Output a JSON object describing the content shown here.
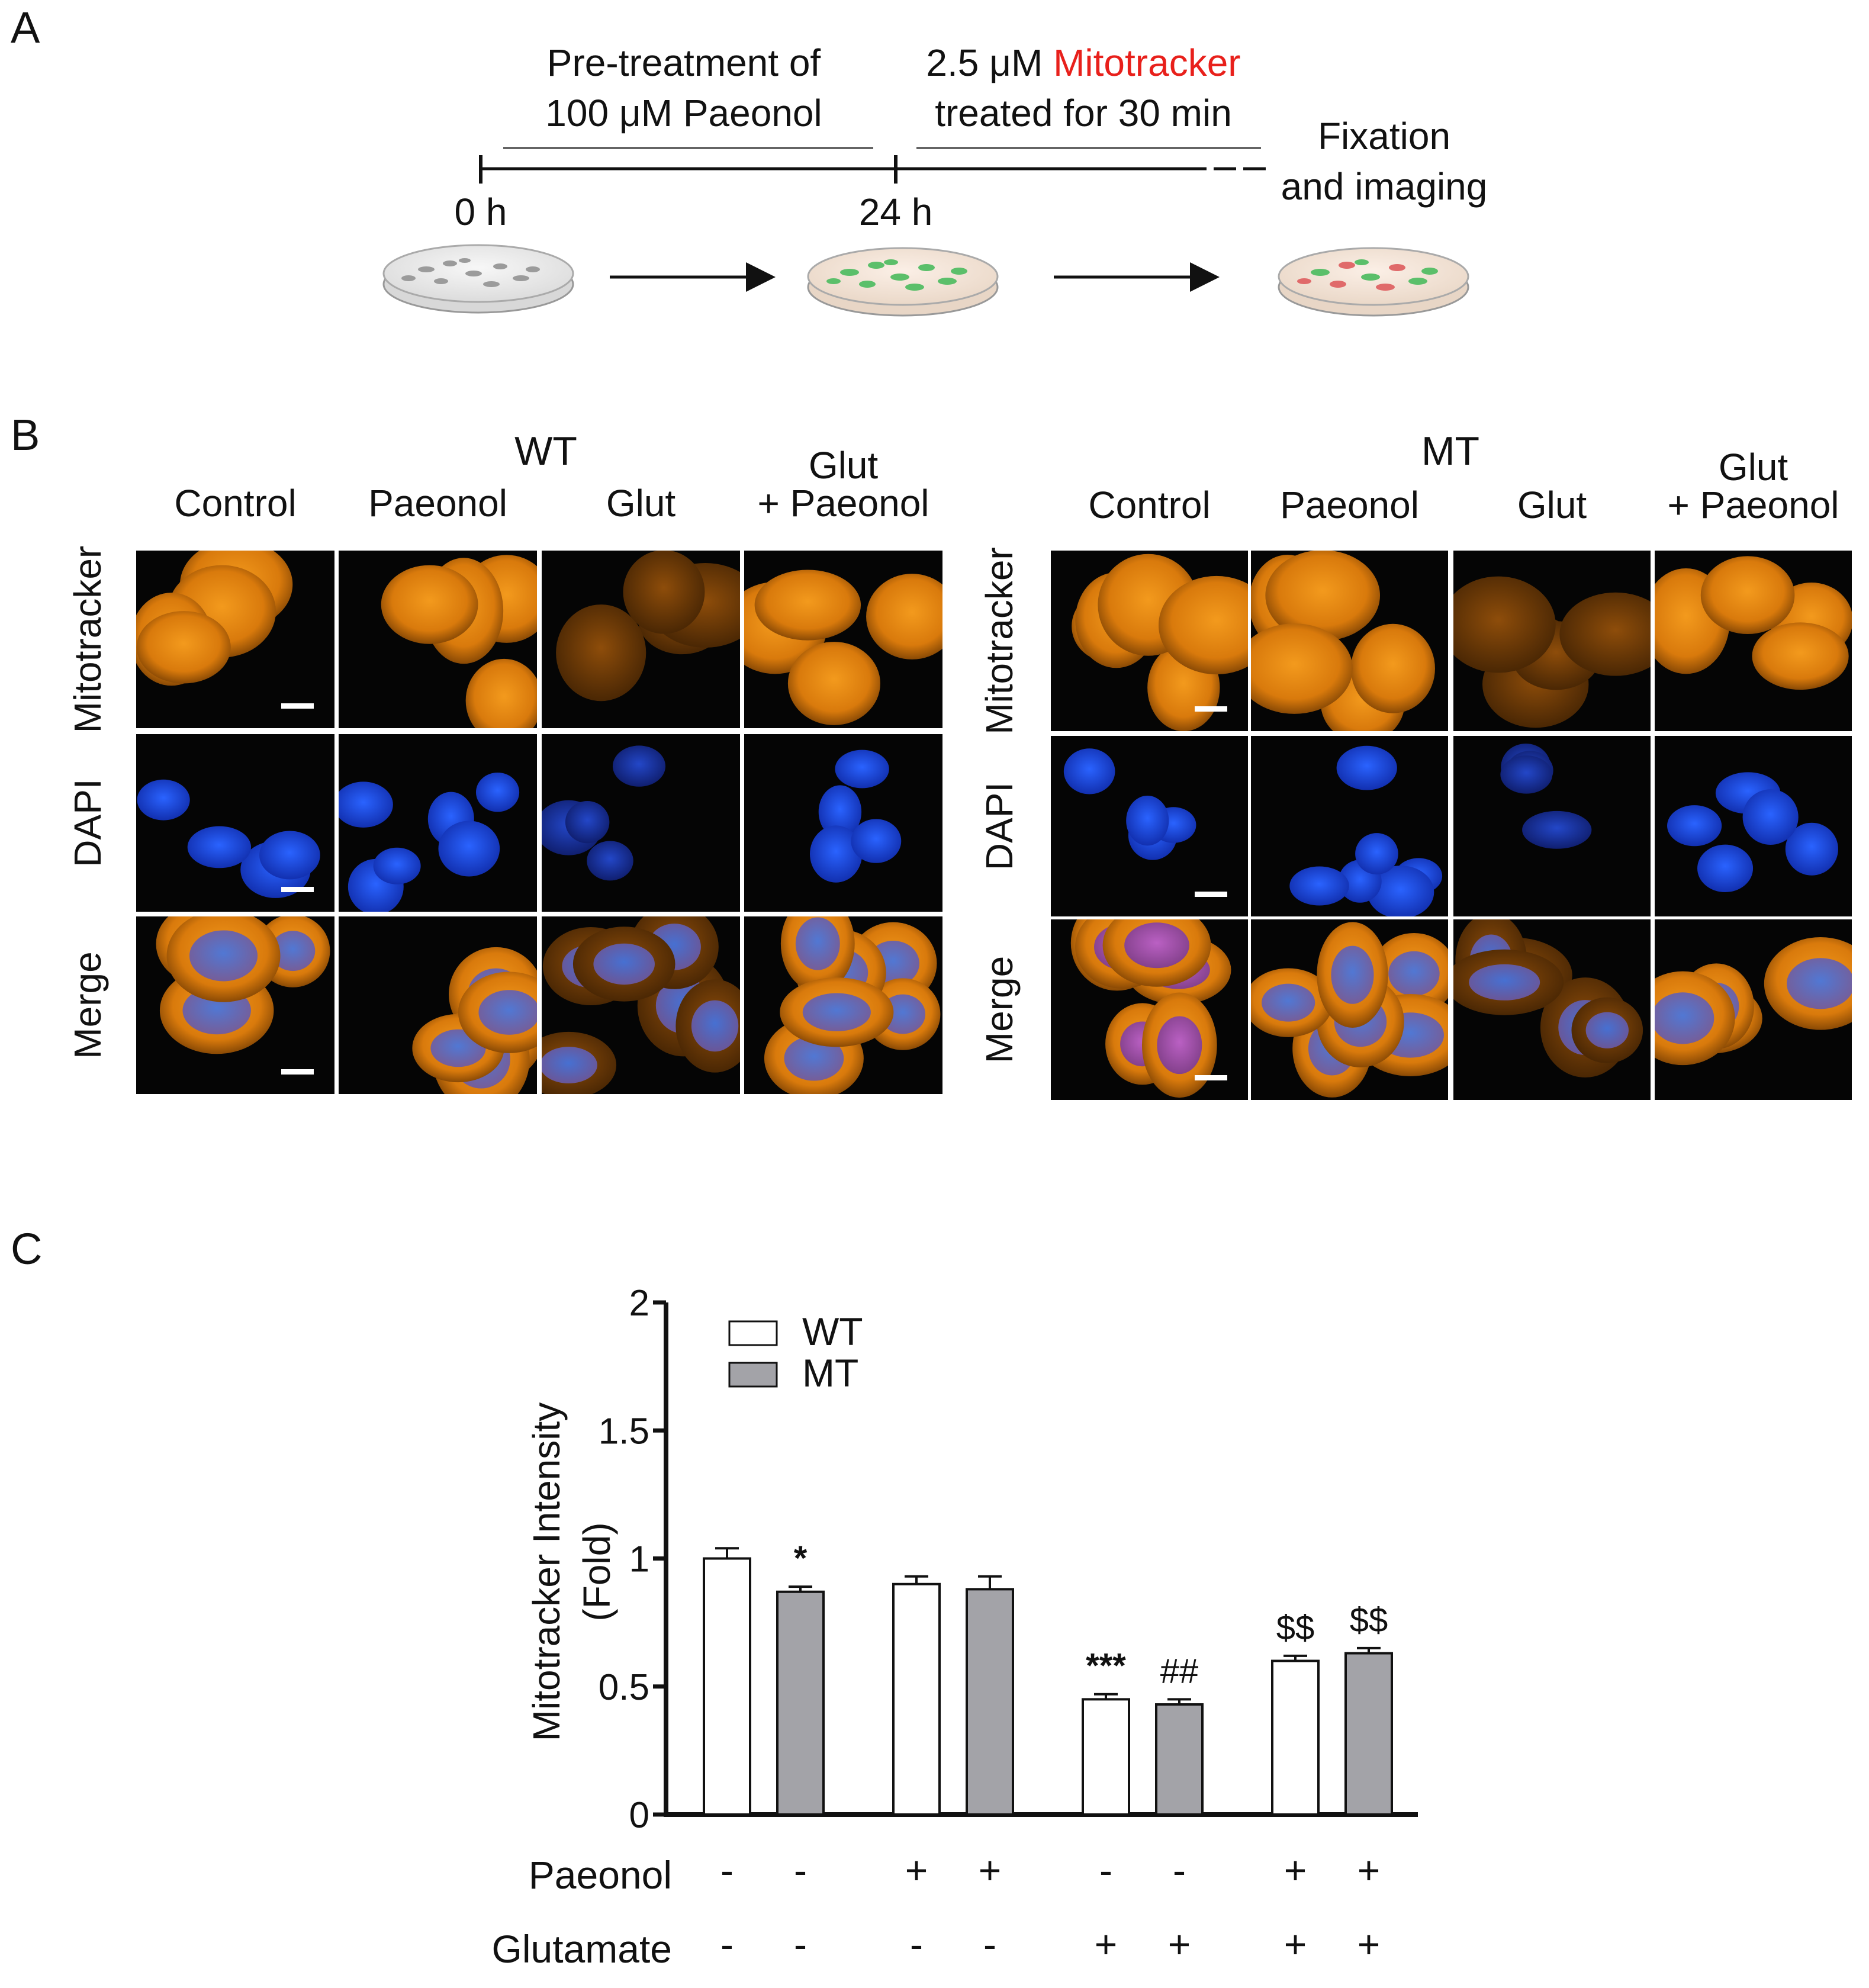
{
  "panel_labels": {
    "a": "A",
    "b": "B",
    "c": "C"
  },
  "timeline": {
    "pretreat_line1": "Pre-treatment of",
    "pretreat_line2": "100 μM Paeonol",
    "stain_prefix": "2.5 μM ",
    "stain_highlight": "Mitotracker",
    "stain_line2": "treated for 30 min",
    "fixation_line1": "Fixation",
    "fixation_line2": "and imaging",
    "t0": "0 h",
    "t24": "24 h"
  },
  "micrographs": {
    "groups": [
      "WT",
      "MT"
    ],
    "conditions": [
      "Control",
      "Paeonol",
      "Glut",
      "+ Paeonol"
    ],
    "glut_prefix": "Glut",
    "rows": [
      "Mitotracker",
      "DAPI",
      "Merge"
    ]
  },
  "colors": {
    "mitotracker": "#e2820e",
    "dapi": "#1f4fe0",
    "highlight_red": "#e8201b",
    "wt_bar": "#ffffff",
    "mt_bar": "#a3a3a8"
  },
  "chart_data": {
    "type": "bar",
    "ylabel_line1": "Mitotracker Intensity",
    "ylabel_line2": "(Fold)",
    "ylim": [
      0,
      2
    ],
    "yticks": [
      0,
      0.5,
      1,
      1.5,
      2
    ],
    "ytick_labels": [
      "0",
      "0.5",
      "1",
      "1.5",
      "2"
    ],
    "legend_position": "top-left",
    "series": [
      {
        "name": "WT",
        "values": [
          1.0,
          0.9,
          0.45,
          0.6
        ],
        "errors": [
          0.04,
          0.03,
          0.02,
          0.02
        ],
        "color": "#ffffff"
      },
      {
        "name": "MT",
        "values": [
          0.87,
          0.88,
          0.43,
          0.63
        ],
        "errors": [
          0.02,
          0.05,
          0.02,
          0.02
        ],
        "color": "#a3a3a8"
      }
    ],
    "significance": [
      {
        "group": 0,
        "series": 1,
        "label": "*"
      },
      {
        "group": 2,
        "series": 0,
        "label": "***"
      },
      {
        "group": 2,
        "series": 1,
        "label": "##"
      },
      {
        "group": 3,
        "series": 0,
        "label": "$$"
      },
      {
        "group": 3,
        "series": 1,
        "label": "$$"
      }
    ],
    "treatment_rows": [
      {
        "label": "Paeonol",
        "marks": [
          "-",
          "-",
          "+",
          "+",
          "-",
          "-",
          "+",
          "+"
        ]
      },
      {
        "label": "Glutamate",
        "marks": [
          "-",
          "-",
          "-",
          "-",
          "+",
          "+",
          "+",
          "+"
        ]
      }
    ]
  }
}
